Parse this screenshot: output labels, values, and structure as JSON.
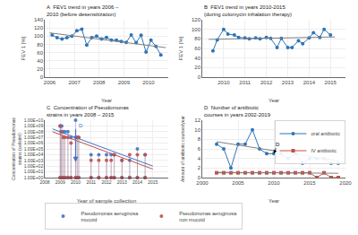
{
  "chart_data": [
    {
      "type": "line",
      "title": "A  FEV1 trend in years 2006 – 2010 (before desensitization)",
      "x_label": "Year",
      "y_label": "FEV 1 [%]",
      "xlim": [
        2005.8,
        2010.8
      ],
      "xticks": [
        2006,
        2007,
        2008,
        2009,
        2010
      ],
      "ylim": [
        0,
        140
      ],
      "yticks": [
        0,
        20,
        40,
        60,
        80,
        100,
        120,
        140
      ],
      "grid": true,
      "series": [
        {
          "color": "#2E75B6",
          "marker": "circle",
          "x": [
            2006.1,
            2006.3,
            2006.5,
            2006.7,
            2006.9,
            2007.1,
            2007.3,
            2007.5,
            2007.7,
            2007.9,
            2008.1,
            2008.3,
            2008.5,
            2008.7,
            2008.9,
            2009.1,
            2009.3,
            2009.5,
            2009.7,
            2009.9,
            2010.1,
            2010.3,
            2010.5
          ],
          "values": [
            103,
            96,
            93,
            96,
            100,
            113,
            117,
            78,
            96,
            100,
            93,
            97,
            90,
            90,
            87,
            85,
            103,
            84,
            102,
            61,
            90,
            75,
            54
          ]
        },
        {
          "color": "#808080",
          "x": [
            2006.0,
            2010.7
          ],
          "values": [
            108,
            72
          ]
        }
      ]
    },
    {
      "type": "line",
      "title": "B  FEV1 trend in years 2010-2015 (during colomycin inhalation therapy)",
      "x_label": "Year",
      "y_label": "FEV 1 [%]",
      "xlim": [
        2009.0,
        2015.7
      ],
      "xticks": [
        2010,
        2011,
        2012,
        2013,
        2014,
        2015
      ],
      "ylim": [
        0,
        120
      ],
      "yticks": [
        0,
        20,
        40,
        60,
        80,
        100,
        120
      ],
      "grid": true,
      "series": [
        {
          "color": "#2E75B6",
          "marker": "circle",
          "x": [
            2009.5,
            2009.7,
            2010.0,
            2010.2,
            2010.5,
            2010.7,
            2011.0,
            2011.2,
            2011.5,
            2011.7,
            2012.0,
            2012.2,
            2012.5,
            2012.7,
            2013.0,
            2013.2,
            2013.5,
            2013.7,
            2014.0,
            2014.2,
            2014.5,
            2014.7,
            2015.0
          ],
          "values": [
            55,
            78,
            100,
            90,
            88,
            83,
            82,
            80,
            82,
            80,
            83,
            81,
            62,
            81,
            62,
            62,
            76,
            70,
            82,
            93,
            83,
            100,
            88
          ]
        },
        {
          "color": "#808080",
          "x": [
            2009.3,
            2015.2
          ],
          "values": [
            79,
            84
          ]
        }
      ]
    },
    {
      "type": "scatter",
      "title": "C  Concentration of Pseudomonas strains in years 2008 – 2015",
      "x_label": "Year of sample collection",
      "y_label": "Concentration of Pseudomonas\nstrains (cells/ml)",
      "log": "y",
      "xlim": [
        2008.0,
        2016.0
      ],
      "xticks": [
        2008,
        2009,
        2010,
        2011,
        2012,
        2013,
        2014,
        2015
      ],
      "ylim": [
        1.0,
        10000000000.0
      ],
      "yticks": [
        {
          "value": 1,
          "label": "1.00E+00"
        },
        {
          "value": 10,
          "label": "1.00E+01"
        },
        {
          "value": 100,
          "label": "1.00E+02"
        },
        {
          "value": 1000,
          "label": "1.00E+03"
        },
        {
          "value": 10000,
          "label": "1.00E+04"
        },
        {
          "value": 100000,
          "label": "1.00E+05"
        },
        {
          "value": 1000000,
          "label": "1.00E+06"
        },
        {
          "value": 10000000,
          "label": "1.00E+07"
        },
        {
          "value": 100000000,
          "label": "1.00E+08"
        },
        {
          "value": 1000000000,
          "label": "1.00E+09"
        },
        {
          "value": 10000000000,
          "label": "1.00E+10"
        }
      ],
      "grid": true,
      "legend": "bottom",
      "series": [
        {
          "name": "Pseudomonas aeruginosa\nmucoid",
          "color": "#4472C4",
          "marker": "circle",
          "x": [
            2009.0,
            2009.05,
            2009.1,
            2009.2,
            2009.3,
            2009.5,
            2009.7,
            2010.0,
            2010.1,
            2010.2,
            2011.0,
            2011.5,
            2012.0,
            2012.3,
            2012.5,
            2013.0,
            2013.5,
            2014.0,
            2014.5
          ],
          "values": [
            1000000000.0,
            1000000000.0,
            1000000000.0,
            100000000.0,
            100000000.0,
            100000000.0,
            10000000.0,
            10000000000.0,
            10000000.0,
            10000000.0,
            10000.0,
            10000.0,
            10000.0,
            10000.0,
            10000.0,
            1000.0,
            1000.0,
            100000.0,
            10000.0
          ]
        },
        {
          "name": "Pseudomonas aeruginosa\nnon mucoid",
          "color": "#C0504D",
          "marker": "circle",
          "x": [
            2009.0,
            2009.05,
            2009.1,
            2009.2,
            2009.3,
            2009.5,
            2009.7,
            2010.0,
            2010.1,
            2010.2,
            2011.0,
            2011.5,
            2012.0,
            2012.3,
            2012.5,
            2013.0,
            2013.5,
            2014.0,
            2014.5
          ],
          "values": [
            1000000000.0,
            100000000.0,
            100000000.0,
            10000000.0,
            10000000.0,
            10000000.0,
            1000000.0,
            10000000.0,
            10000000.0,
            10000000.0,
            1000.0,
            1000.0,
            1000.0,
            1000.0,
            10000.0,
            1000.0,
            10000.0,
            10000.0,
            10000.0
          ]
        },
        {
          "color": "#4472C4",
          "marker": "circle",
          "x": [
            2009.0,
            2009.05,
            2009.1,
            2009.2,
            2009.3,
            2009.5,
            2009.7,
            2010.0,
            2010.1,
            2010.2,
            2011.0,
            2011.5,
            2012.0,
            2012.3,
            2012.5,
            2013.0,
            2013.5,
            2014.0,
            2014.5
          ],
          "values": [
            1.0,
            1.0,
            1.0,
            1.0,
            1.0,
            1.0,
            1.0,
            1.0,
            1.0,
            1.0,
            1.0,
            1.0,
            1.0,
            1.0,
            1.0,
            1.0,
            1.0,
            1.0,
            1.0
          ]
        },
        {
          "color": "#C0504D",
          "marker": "circle",
          "x": [
            2009.0,
            2009.05,
            2009.1,
            2009.2,
            2009.3,
            2009.5,
            2009.7,
            2010.0,
            2010.1,
            2010.2,
            2011.0,
            2011.5,
            2012.0,
            2012.3,
            2012.5,
            2013.0,
            2013.5,
            2014.0,
            2014.5
          ],
          "values": [
            1.0,
            1.0,
            1.0,
            1.0,
            1.0,
            1.0,
            1.0,
            1.0,
            1.0,
            1.0,
            1.0,
            1.0,
            1.0,
            1.0,
            1.0,
            1.0,
            1.0,
            1.0,
            1.0
          ]
        },
        {
          "type": "line",
          "color": "#4472C4",
          "x": [
            2008.5,
            2015.0
          ],
          "values": [
            300000000.0,
            100.0
          ]
        },
        {
          "type": "line",
          "color": "#C0504D",
          "x": [
            2008.5,
            2015.0
          ],
          "values": [
            100000000.0,
            30.0
          ]
        }
      ],
      "annotations": [
        {
          "x": 2010.0,
          "y": 500.0,
          "from_x": 2010.0,
          "from_y": 500000000.0,
          "color": "#4472C4"
        },
        {
          "text": "D",
          "x": 2010.1,
          "y": 200000000.0,
          "color": "#4472C4"
        }
      ]
    },
    {
      "type": "line",
      "title": "D  Number of antibiotic courses in years 2002-2019",
      "x_label": "Year",
      "y_label": "Amount of antibiotic courses/year",
      "xlim": [
        2000,
        2020
      ],
      "xticks": [
        2000,
        2005,
        2010,
        2015,
        2020
      ],
      "ylim": [
        0,
        12
      ],
      "yticks": [
        0,
        2,
        4,
        6,
        8,
        10,
        12
      ],
      "grid": true,
      "legend": "upper right",
      "series": [
        {
          "name": "oral antibiotic",
          "color": "#2E75B6",
          "marker": "circle",
          "x": [
            2002,
            2003,
            2004,
            2005,
            2006,
            2007,
            2008,
            2009,
            2010,
            2011,
            2012,
            2013,
            2014,
            2015,
            2016,
            2017,
            2018,
            2019
          ],
          "values": [
            7,
            6,
            2,
            7,
            7,
            10,
            6,
            5,
            5,
            5,
            4,
            5,
            3,
            4,
            4,
            4,
            3,
            3
          ]
        },
        {
          "name": "IV antibiotic",
          "color": "#C0504D",
          "marker": "square",
          "x": [
            2002,
            2003,
            2004,
            2005,
            2006,
            2007,
            2008,
            2009,
            2010,
            2011,
            2012,
            2013,
            2014,
            2015,
            2016,
            2017,
            2018,
            2019
          ],
          "values": [
            1,
            1,
            1,
            1,
            1,
            1,
            1,
            1,
            1,
            1,
            1,
            1,
            1,
            1,
            0,
            1,
            0,
            0
          ]
        },
        {
          "color": "#808080",
          "x": [
            2002,
            2019
          ],
          "values": [
            7.5,
            3.5
          ]
        },
        {
          "color": "#808080",
          "x": [
            2002,
            2019
          ],
          "values": [
            1.1,
            0.9
          ]
        }
      ],
      "annotations": [
        {
          "text": "D",
          "x": 2010,
          "y": 5,
          "from_x": 2010.5,
          "from_y": 7,
          "color": "black"
        }
      ]
    }
  ]
}
